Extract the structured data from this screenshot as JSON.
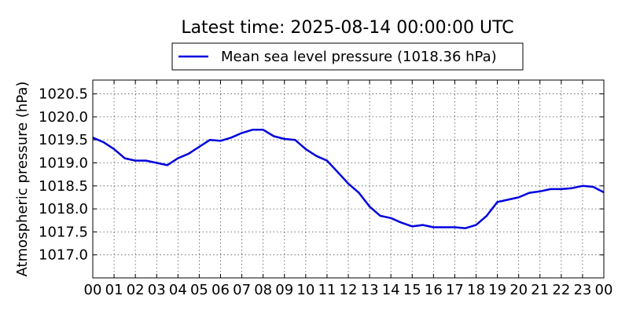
{
  "chart_data": {
    "type": "line",
    "title": "Latest time: 2025-08-14 00:00:00 UTC",
    "ylabel": "Atmospheric pressure (hPa)",
    "xlabel": "",
    "xlim": [
      0,
      24
    ],
    "ylim": [
      1016.5,
      1020.8
    ],
    "grid": true,
    "legend_position": "top-center",
    "x_tick_labels": [
      "00",
      "01",
      "02",
      "03",
      "04",
      "05",
      "06",
      "07",
      "08",
      "09",
      "10",
      "11",
      "12",
      "13",
      "14",
      "15",
      "16",
      "17",
      "18",
      "19",
      "20",
      "21",
      "22",
      "23",
      "00"
    ],
    "y_ticks": [
      1017.0,
      1017.5,
      1018.0,
      1018.5,
      1019.0,
      1019.5,
      1020.0,
      1020.5
    ],
    "y_tick_labels": [
      "1017.0",
      "1017.5",
      "1018.0",
      "1018.5",
      "1019.0",
      "1019.5",
      "1020.0",
      "1020.5"
    ],
    "series": [
      {
        "name": "Mean sea level pressure (1018.36 hPa)",
        "color": "#0000dd",
        "x": [
          0,
          0.5,
          1,
          1.5,
          2,
          2.5,
          3,
          3.5,
          4,
          4.5,
          5,
          5.5,
          6,
          6.5,
          7,
          7.5,
          8,
          8.5,
          9,
          9.5,
          10,
          10.5,
          11,
          11.5,
          12,
          12.5,
          13,
          13.5,
          14,
          14.5,
          15,
          15.5,
          16,
          16.5,
          17,
          17.5,
          18,
          18.5,
          19,
          19.5,
          20,
          20.5,
          21,
          21.5,
          22,
          22.5,
          23,
          23.5,
          24
        ],
        "y": [
          1019.55,
          1019.45,
          1019.3,
          1019.1,
          1019.05,
          1019.05,
          1019.0,
          1018.95,
          1019.1,
          1019.2,
          1019.35,
          1019.5,
          1019.48,
          1019.55,
          1019.65,
          1019.72,
          1019.72,
          1019.58,
          1019.52,
          1019.5,
          1019.3,
          1019.15,
          1019.05,
          1018.8,
          1018.55,
          1018.35,
          1018.05,
          1017.85,
          1017.8,
          1017.7,
          1017.62,
          1017.65,
          1017.6,
          1017.6,
          1017.6,
          1017.58,
          1017.65,
          1017.85,
          1018.15,
          1018.2,
          1018.25,
          1018.35,
          1018.38,
          1018.43,
          1018.43,
          1018.45,
          1018.5,
          1018.48,
          1018.36
        ]
      }
    ]
  }
}
